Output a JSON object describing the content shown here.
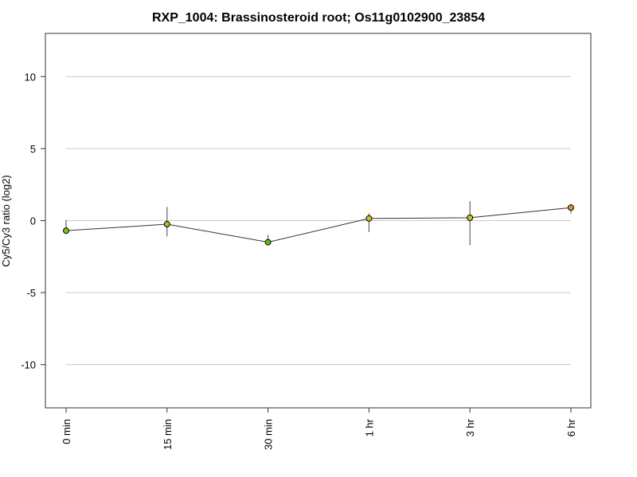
{
  "chart_data": {
    "type": "line",
    "title": "RXP_1004: Brassinosteroid root; Os11g0102900_23854",
    "xlabel": "",
    "ylabel": "Cy5/Cy3 ratio (log2)",
    "categories": [
      "0 min",
      "15 min",
      "30 min",
      "1 hr",
      "3 hr",
      "6 hr"
    ],
    "values": [
      -0.7,
      -0.25,
      -1.5,
      0.15,
      0.2,
      0.9
    ],
    "error_low": [
      -0.75,
      -1.1,
      -1.65,
      -0.8,
      -1.7,
      0.5
    ],
    "error_high": [
      0.05,
      0.95,
      -1.0,
      0.5,
      1.35,
      1.15
    ],
    "point_colors": [
      "#7fbf1f",
      "#a8c41f",
      "#5fbf1f",
      "#d4c21f",
      "#d4c21f",
      "#d49a1f"
    ],
    "ylim": [
      -13,
      13
    ],
    "yticks": [
      -10,
      -5,
      0,
      5,
      10
    ],
    "ytick_labels": [
      "-10",
      "-5",
      "0",
      "5",
      "10"
    ],
    "grid": true,
    "line_color": "#333333",
    "grid_color": "#cccccc"
  }
}
